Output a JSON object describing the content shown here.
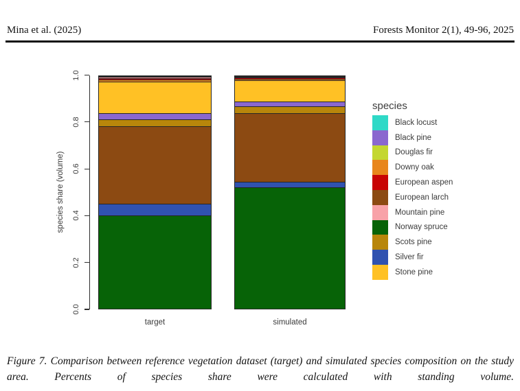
{
  "header": {
    "left": "Mina et al. (2025)",
    "right": "Forests Monitor 2(1), 49-96, 2025"
  },
  "figure_caption": {
    "text": "Figure 7. Comparison between reference vegetation dataset (target) and simulated species composition on the study area. Percents of species share were calculated with standing volume."
  },
  "chart_data": {
    "type": "bar",
    "stacked": true,
    "categories": [
      "target",
      "simulated"
    ],
    "ylabel": "species share (volume)",
    "ylim": [
      0,
      1
    ],
    "yticks": [
      "0.0",
      "0.2",
      "0.4",
      "0.6",
      "0.8",
      "1.0"
    ],
    "grid": false,
    "legend_title": "species",
    "legend_position": "right",
    "bar_border_color": "#262626",
    "stack_order_bottom_to_top": [
      "Norway spruce",
      "Silver fir",
      "European larch",
      "Scots pine",
      "Black pine",
      "Stone pine",
      "Downy oak",
      "European aspen",
      "Mountain pine",
      "Douglas fir",
      "Black locust"
    ],
    "series": [
      {
        "name": "Black locust",
        "color": "#2FD9C7",
        "values": [
          0.001,
          0.001
        ]
      },
      {
        "name": "Black pine",
        "color": "#8A68CF",
        "values": [
          0.026,
          0.019
        ]
      },
      {
        "name": "Douglas fir",
        "color": "#C4D730",
        "values": [
          0.002,
          0.001
        ]
      },
      {
        "name": "Downy oak",
        "color": "#E8861C",
        "values": [
          0.006,
          0.003
        ]
      },
      {
        "name": "European aspen",
        "color": "#C80404",
        "values": [
          0.003,
          0.002
        ]
      },
      {
        "name": "European larch",
        "color": "#8C4A12",
        "values": [
          0.339,
          0.301
        ]
      },
      {
        "name": "Mountain pine",
        "color": "#F8A2A8",
        "values": [
          0.002,
          0.001
        ]
      },
      {
        "name": "Norway spruce",
        "color": "#076307",
        "values": [
          0.411,
          0.533
        ]
      },
      {
        "name": "Scots pine",
        "color": "#B8860B",
        "values": [
          0.028,
          0.026
        ]
      },
      {
        "name": "Silver fir",
        "color": "#3052B0",
        "values": [
          0.047,
          0.022
        ]
      },
      {
        "name": "Stone pine",
        "color": "#FFC125",
        "values": [
          0.135,
          0.091
        ]
      }
    ]
  }
}
